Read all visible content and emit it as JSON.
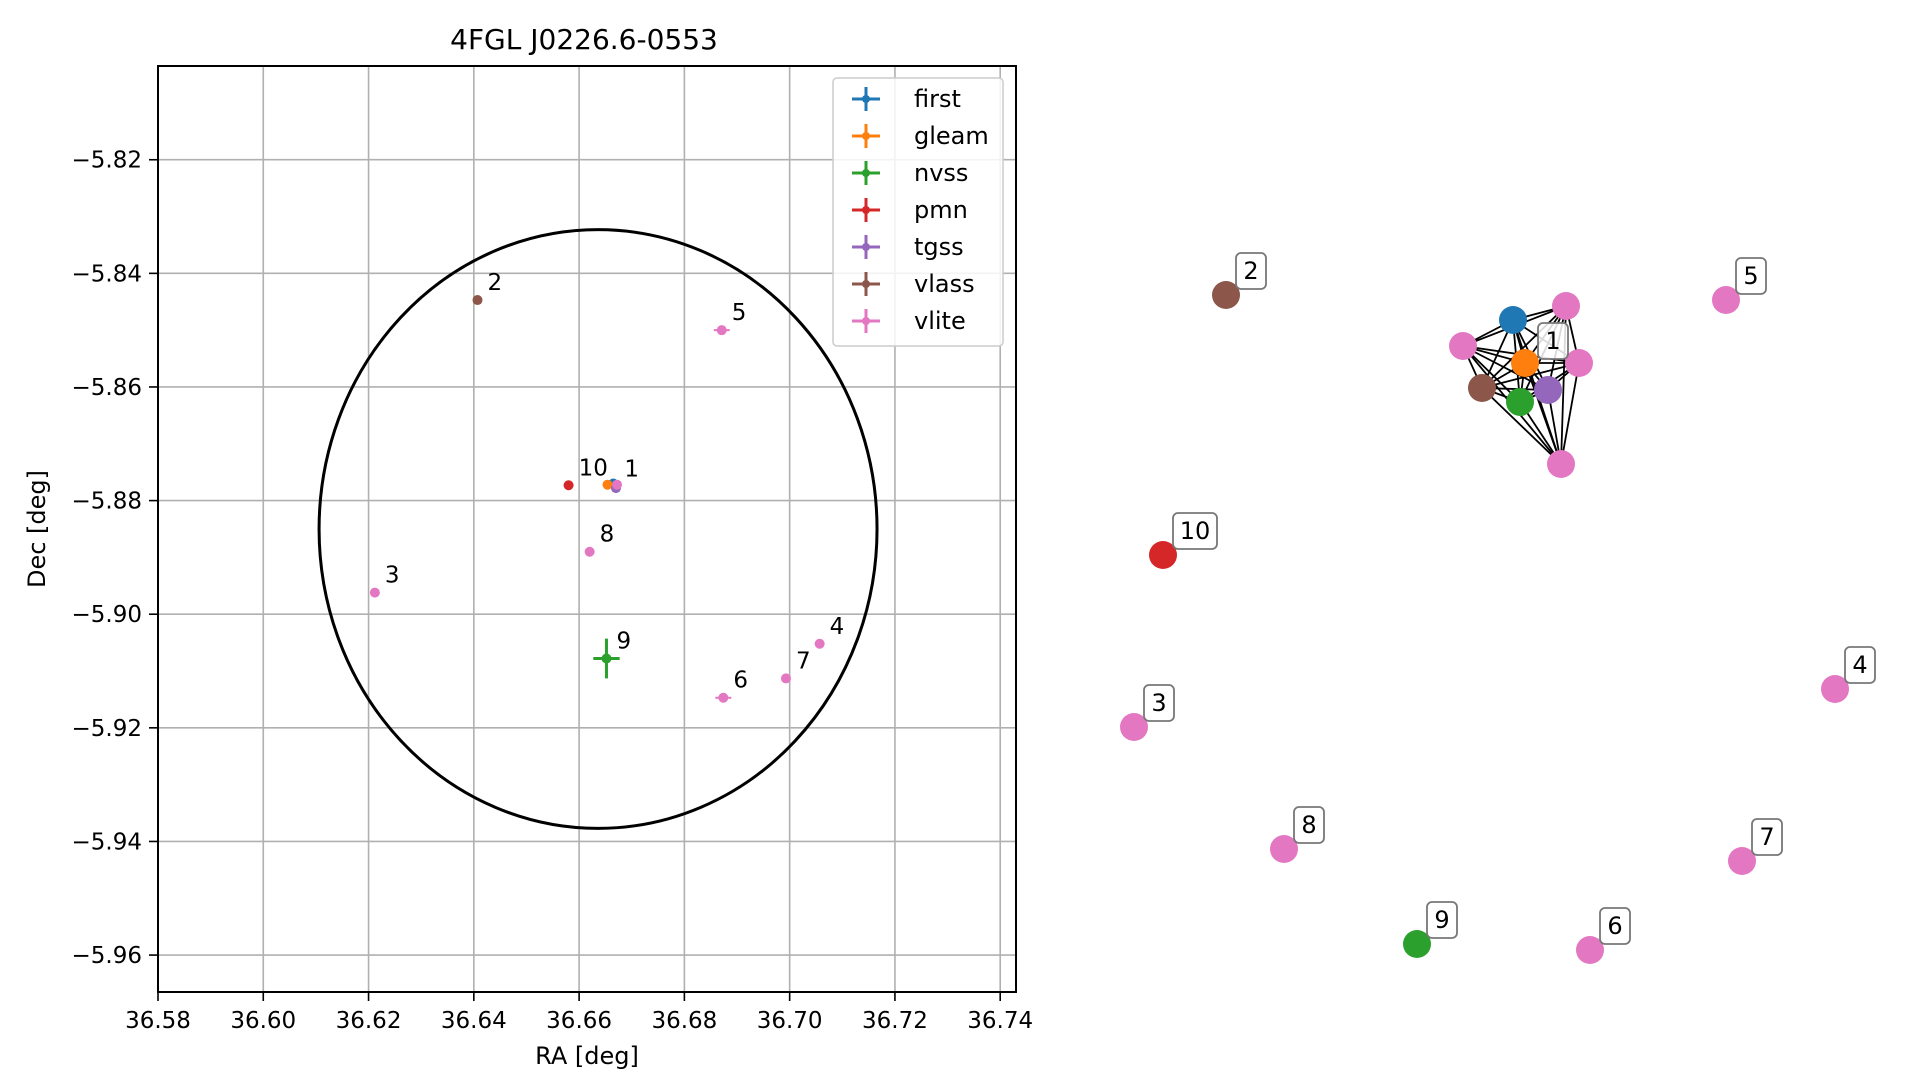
{
  "chart_data": [
    {
      "type": "scatter",
      "title": "4FGL J0226.6-0553",
      "xlabel": "RA [deg]",
      "ylabel": "Dec [deg]",
      "xlim": [
        36.58,
        36.743
      ],
      "ylim": [
        -5.9665,
        -5.8035
      ],
      "xticks": [
        36.58,
        36.6,
        36.62,
        36.64,
        36.66,
        36.68,
        36.7,
        36.72,
        36.74
      ],
      "xtick_labels": [
        "36.58",
        "36.60",
        "36.62",
        "36.64",
        "36.66",
        "36.68",
        "36.70",
        "36.72",
        "36.74"
      ],
      "yticks": [
        -5.82,
        -5.84,
        -5.86,
        -5.88,
        -5.9,
        -5.92,
        -5.94,
        -5.96
      ],
      "ytick_labels": [
        "−5.82",
        "−5.84",
        "−5.86",
        "−5.88",
        "−5.90",
        "−5.92",
        "−5.94",
        "−5.96"
      ],
      "grid": true,
      "legend_position": "top-right",
      "ellipse": {
        "center": [
          36.6636,
          -5.885
        ],
        "semi_axis_ra": 0.053,
        "semi_axis_dec": 0.0527
      },
      "series": [
        {
          "name": "first",
          "color": "#1f77b4",
          "points": [
            {
              "x": 36.6665,
              "y": -5.877
            }
          ]
        },
        {
          "name": "gleam",
          "color": "#ff7f0e",
          "points": [
            {
              "x": 36.6654,
              "y": -5.8772
            }
          ]
        },
        {
          "name": "nvss",
          "color": "#2ca02c",
          "points": [
            {
              "x": 36.6652,
              "y": -5.9078,
              "xerr": 0.0025,
              "yerr": 0.0035
            }
          ]
        },
        {
          "name": "pmn",
          "color": "#d62728",
          "points": [
            {
              "x": 36.658,
              "y": -5.8773
            }
          ]
        },
        {
          "name": "tgss",
          "color": "#9467bd",
          "points": [
            {
              "x": 36.667,
              "y": -5.8778
            }
          ]
        },
        {
          "name": "vlass",
          "color": "#8c564b",
          "points": [
            {
              "x": 36.6407,
              "y": -5.8447
            }
          ]
        },
        {
          "name": "vlite",
          "color": "#e377c2",
          "points": [
            {
              "x": 36.6672,
              "y": -5.8772
            },
            {
              "x": 36.6871,
              "y": -5.85
            },
            {
              "x": 36.6212,
              "y": -5.8962
            },
            {
              "x": 36.7057,
              "y": -5.9052
            },
            {
              "x": 36.6874,
              "y": -5.9147
            },
            {
              "x": 36.6993,
              "y": -5.9113
            },
            {
              "x": 36.662,
              "y": -5.889
            }
          ]
        }
      ],
      "labels": [
        {
          "text": "1",
          "x": 36.6667,
          "y": -5.8775
        },
        {
          "text": "2",
          "x": 36.6407,
          "y": -5.8447
        },
        {
          "text": "3",
          "x": 36.6212,
          "y": -5.8962
        },
        {
          "text": "4",
          "x": 36.7057,
          "y": -5.9052
        },
        {
          "text": "5",
          "x": 36.6871,
          "y": -5.85
        },
        {
          "text": "6",
          "x": 36.6874,
          "y": -5.9147
        },
        {
          "text": "7",
          "x": 36.6993,
          "y": -5.9113
        },
        {
          "text": "8",
          "x": 36.662,
          "y": -5.889
        },
        {
          "text": "9",
          "x": 36.6652,
          "y": -5.9078
        },
        {
          "text": "10",
          "x": 36.658,
          "y": -5.8773
        }
      ]
    },
    {
      "type": "network",
      "nodes": [
        {
          "id": "first-1",
          "color": "#1f77b4"
        },
        {
          "id": "gleam-1",
          "color": "#ff7f0e"
        },
        {
          "id": "nvss-1",
          "color": "#2ca02c"
        },
        {
          "id": "tgss-1",
          "color": "#9467bd"
        },
        {
          "id": "vlass-1",
          "color": "#8c564b"
        },
        {
          "id": "vlite-1a",
          "color": "#e377c2"
        },
        {
          "id": "vlite-1b",
          "color": "#e377c2"
        },
        {
          "id": "vlite-1c",
          "color": "#e377c2"
        },
        {
          "id": "vlite-1d",
          "color": "#e377c2"
        },
        {
          "id": "vlass-2",
          "color": "#8c564b",
          "label": "2"
        },
        {
          "id": "vlite-5",
          "color": "#e377c2",
          "label": "5"
        },
        {
          "id": "pmn-10",
          "color": "#d62728",
          "label": "10"
        },
        {
          "id": "vlite-3",
          "color": "#e377c2",
          "label": "3"
        },
        {
          "id": "vlite-4",
          "color": "#e377c2",
          "label": "4"
        },
        {
          "id": "vlite-8",
          "color": "#e377c2",
          "label": "8"
        },
        {
          "id": "vlite-7",
          "color": "#e377c2",
          "label": "7"
        },
        {
          "id": "nvss-9",
          "color": "#2ca02c",
          "label": "9"
        },
        {
          "id": "vlite-6",
          "color": "#e377c2",
          "label": "6"
        }
      ],
      "cluster_label": "1",
      "cluster_nodes": [
        "first-1",
        "gleam-1",
        "nvss-1",
        "tgss-1",
        "vlass-1",
        "vlite-1a",
        "vlite-1b",
        "vlite-1c",
        "vlite-1d"
      ]
    }
  ]
}
